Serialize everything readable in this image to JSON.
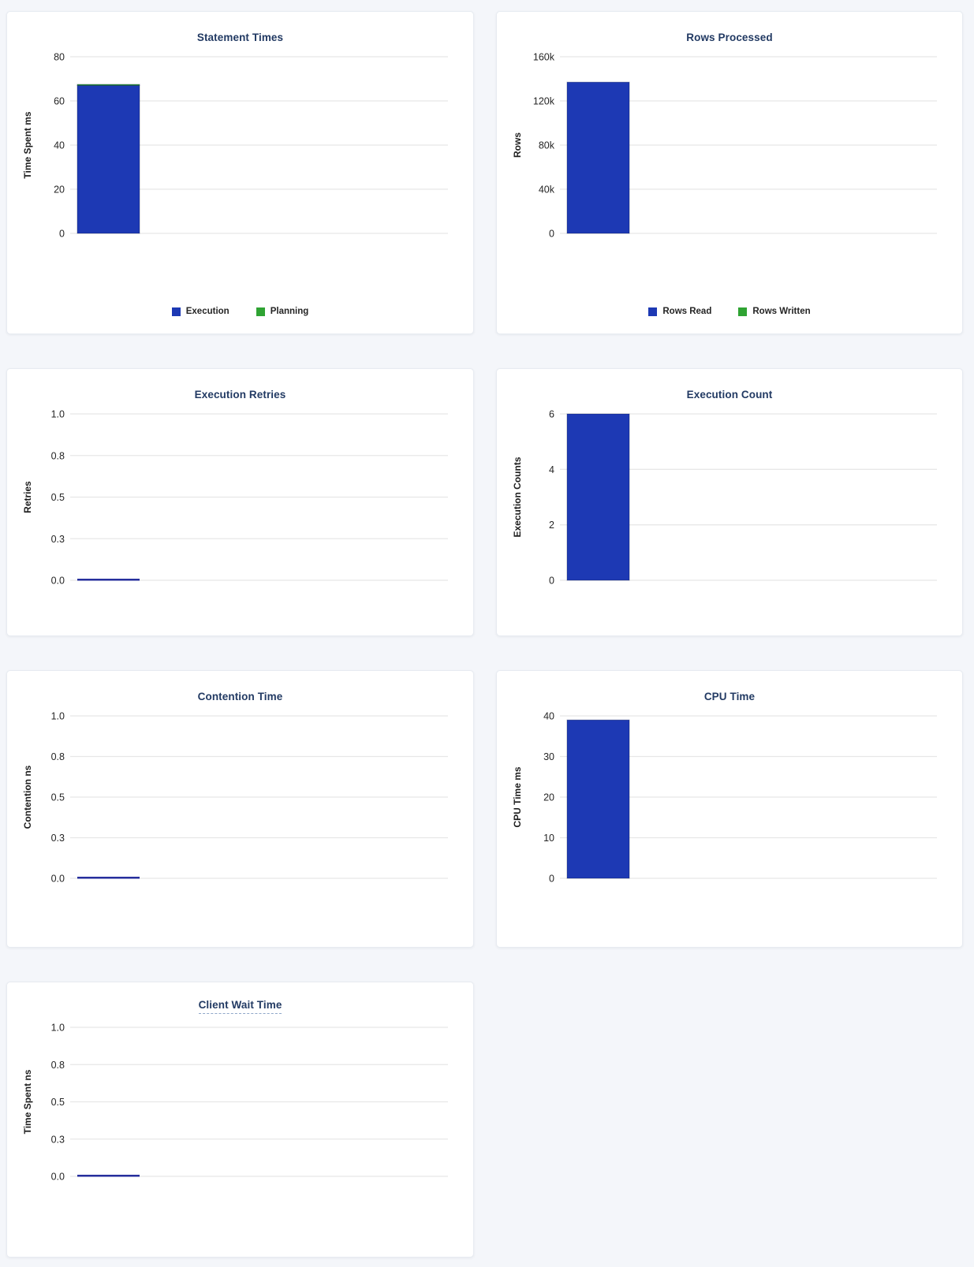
{
  "page": {
    "background": "#f4f6fa"
  },
  "colors": {
    "bar_blue": "#1d39b4",
    "bar_blue_stroke": "#12277f",
    "bar_green": "#2fa333",
    "bar_green_stroke": "#1d7a24",
    "zero_line": "#262f9d",
    "gridline": "#e7e7e7",
    "title": "#223a63",
    "tick_label": "#252525",
    "axis_label": "#1d1d1d"
  },
  "chart_data": [
    {
      "type": "bar",
      "title": "Statement Times",
      "ylabel": "Time Spent ms",
      "ytick_labels": [
        "0",
        "20",
        "40",
        "60",
        "80"
      ],
      "ylim": [
        0,
        80
      ],
      "categories": [
        ""
      ],
      "stacked": true,
      "grid": true,
      "legend_position": "bottom",
      "series": [
        {
          "name": "Execution",
          "values": [
            67
          ],
          "color": "#1d39b4"
        },
        {
          "name": "Planning",
          "values": [
            0.5
          ],
          "color": "#2fa333"
        }
      ]
    },
    {
      "type": "bar",
      "title": "Rows Processed",
      "ylabel": "Rows",
      "ytick_labels": [
        "0",
        "40k",
        "80k",
        "120k",
        "160k"
      ],
      "ylim": [
        0,
        160000
      ],
      "categories": [
        ""
      ],
      "stacked": true,
      "grid": true,
      "legend_position": "bottom",
      "series": [
        {
          "name": "Rows Read",
          "values": [
            137000
          ],
          "color": "#1d39b4"
        },
        {
          "name": "Rows Written",
          "values": [
            0
          ],
          "color": "#2fa333"
        }
      ]
    },
    {
      "type": "bar",
      "title": "Execution Retries",
      "ylabel": "Retries",
      "ytick_labels": [
        "0.0",
        "0.3",
        "0.5",
        "0.8",
        "1.0"
      ],
      "ylim": [
        0,
        1
      ],
      "categories": [
        ""
      ],
      "stacked": false,
      "grid": true,
      "legend_position": "none",
      "series": [
        {
          "name": "Retries",
          "values": [
            0
          ],
          "color": "#1d39b4"
        }
      ]
    },
    {
      "type": "bar",
      "title": "Execution Count",
      "ylabel": "Execution Counts",
      "ytick_labels": [
        "0",
        "2",
        "4",
        "6"
      ],
      "ylim": [
        0,
        6
      ],
      "categories": [
        ""
      ],
      "stacked": false,
      "grid": true,
      "legend_position": "none",
      "series": [
        {
          "name": "Execution Count",
          "values": [
            6
          ],
          "color": "#1d39b4"
        }
      ]
    },
    {
      "type": "bar",
      "title": "Contention Time",
      "ylabel": "Contention ns",
      "ytick_labels": [
        "0.0",
        "0.3",
        "0.5",
        "0.8",
        "1.0"
      ],
      "ylim": [
        0,
        1
      ],
      "categories": [
        ""
      ],
      "stacked": false,
      "grid": true,
      "legend_position": "none",
      "series": [
        {
          "name": "Contention",
          "values": [
            0
          ],
          "color": "#1d39b4"
        }
      ]
    },
    {
      "type": "bar",
      "title": "CPU Time",
      "ylabel": "CPU Time ms",
      "ytick_labels": [
        "0",
        "10",
        "20",
        "30",
        "40"
      ],
      "ylim": [
        0,
        40
      ],
      "categories": [
        ""
      ],
      "stacked": false,
      "grid": true,
      "legend_position": "none",
      "series": [
        {
          "name": "CPU Time",
          "values": [
            39
          ],
          "color": "#1d39b4"
        }
      ]
    },
    {
      "type": "bar",
      "title": "Client Wait Time",
      "title_has_tooltip": true,
      "ylabel": "Time Spent ns",
      "ytick_labels": [
        "0.0",
        "0.3",
        "0.5",
        "0.8",
        "1.0"
      ],
      "ylim": [
        0,
        1
      ],
      "categories": [
        ""
      ],
      "stacked": false,
      "grid": true,
      "legend_position": "none",
      "series": [
        {
          "name": "Client Wait",
          "values": [
            0
          ],
          "color": "#1d39b4"
        }
      ]
    }
  ]
}
